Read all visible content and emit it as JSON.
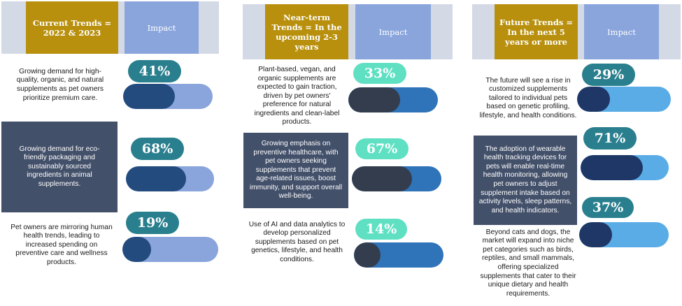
{
  "columns": [
    {
      "title": "Current Trends = 2022 & 2023",
      "impact_label": "Impact",
      "rows": [
        {
          "text": "Growing demand for high-quality, organic, and natural supplements as pet owners prioritize premium care.",
          "percent_label": "41%",
          "fraction": 0.41
        },
        {
          "text": "Growing demand for eco-friendly packaging and sustainably sourced ingredients in animal supplements.",
          "percent_label": "68%",
          "fraction": 0.68
        },
        {
          "text": "Pet owners are mirroring human health trends, leading to increased spending on preventive care and wellness products.",
          "percent_label": "19%",
          "fraction": 0.19
        }
      ]
    },
    {
      "title": "Near-term Trends = In the upcoming 2-3 years",
      "impact_label": "Impact",
      "rows": [
        {
          "text": "Plant-based, vegan, and organic supplements are expected to gain traction, driven by pet owners' preference for natural ingredients and clean-label products.",
          "percent_label": "33%",
          "fraction": 0.33
        },
        {
          "text": "Growing emphasis on preventive healthcare, with pet owners seeking supplements that prevent age-related issues, boost immunity, and support overall well-being.",
          "percent_label": "67%",
          "fraction": 0.67
        },
        {
          "text": "Use of AI and data analytics to develop personalized supplements based on pet genetics, lifestyle, and health conditions.",
          "percent_label": "14%",
          "fraction": 0.14
        }
      ]
    },
    {
      "title": "Future Trends = In the next 5 years or more",
      "impact_label": "Impact",
      "rows": [
        {
          "text": "The future will see a rise in customized supplements tailored to individual pets based on genetic profiling, lifestyle, and health conditions.",
          "percent_label": "29%",
          "fraction": 0.29
        },
        {
          "text": "The adoption of wearable health tracking devices for pets will enable real-time health monitoring, allowing pet owners to adjust supplement intake based on activity levels, sleep patterns, and health indicators.",
          "percent_label": "71%",
          "fraction": 0.71
        },
        {
          "text": "Beyond cats and dogs, the market will expand into niche pet categories such as birds, reptiles, and small mammals, offering specialized supplements that cater to their unique dietary and health requirements.",
          "percent_label": "37%",
          "fraction": 0.37
        }
      ]
    }
  ],
  "colors": {
    "header_gold": "#b8900e",
    "header_blue": "#8aa5dc",
    "header_grey": "#d3d9e5",
    "dark_panel": "#43506a",
    "pill_teal": "#2a7f8e",
    "pill_mint": "#5fe0c3",
    "bar_light_col1": "#8aa5dc",
    "bar_fill_col1": "#234b7d",
    "bar_light_col2": "#2f73b8",
    "bar_fill_col2": "#333d4e",
    "bar_light_col3": "#5aace6",
    "bar_fill_col3": "#1f3766"
  }
}
